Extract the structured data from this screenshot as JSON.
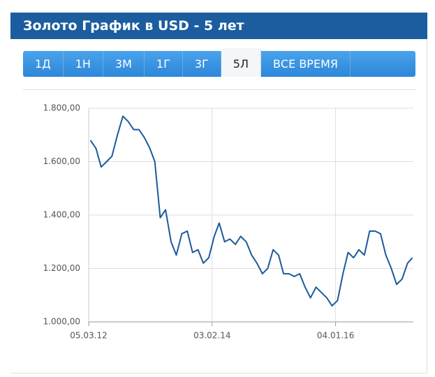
{
  "header": {
    "title": "Золото График в USD - 5 лет"
  },
  "tabs": {
    "items": [
      "1Д",
      "1Н",
      "3М",
      "1Г",
      "3Г",
      "5Л",
      "ВСЕ ВРЕМЯ"
    ],
    "active": 5
  },
  "chart_data": {
    "type": "line",
    "color": "#1c5a9c",
    "grid": true,
    "x": [
      "15.03.12",
      "15.04.12",
      "15.05.12",
      "15.06.12",
      "15.07.12",
      "15.08.12",
      "15.09.12",
      "15.10.12",
      "15.11.12",
      "15.12.12",
      "15.01.13",
      "15.02.13",
      "15.03.13",
      "15.04.13",
      "15.05.13",
      "15.06.13",
      "15.07.13",
      "15.08.13",
      "15.09.13",
      "15.10.13",
      "15.11.13",
      "15.12.13",
      "15.01.14",
      "15.02.14",
      "15.03.14",
      "15.04.14",
      "15.05.14",
      "15.06.14",
      "15.07.14",
      "15.08.14",
      "15.09.14",
      "15.10.14",
      "15.11.14",
      "15.12.14",
      "15.01.15",
      "15.02.15",
      "15.03.15",
      "15.04.15",
      "15.05.15",
      "15.06.15",
      "15.07.15",
      "15.08.15",
      "15.09.15",
      "15.10.15",
      "15.11.15",
      "15.12.15",
      "15.01.16",
      "15.02.16",
      "15.03.16",
      "15.04.16",
      "15.05.16",
      "15.06.16",
      "15.07.16",
      "15.08.16",
      "15.09.16",
      "15.10.16",
      "15.11.16",
      "15.12.16",
      "15.01.17",
      "15.02.17",
      "15.03.17"
    ],
    "values": [
      1680,
      1650,
      1580,
      1600,
      1620,
      1700,
      1770,
      1750,
      1720,
      1720,
      1690,
      1650,
      1600,
      1390,
      1420,
      1300,
      1250,
      1330,
      1340,
      1260,
      1270,
      1220,
      1240,
      1320,
      1370,
      1300,
      1310,
      1290,
      1320,
      1300,
      1250,
      1220,
      1180,
      1200,
      1270,
      1250,
      1180,
      1180,
      1170,
      1180,
      1130,
      1090,
      1130,
      1110,
      1090,
      1060,
      1080,
      1180,
      1260,
      1240,
      1270,
      1250,
      1340,
      1340,
      1330,
      1250,
      1200,
      1140,
      1160,
      1220,
      1240
    ],
    "xlim": [
      "05.03.12",
      "20.03.17"
    ],
    "xticks": [
      "05.03.12",
      "03.02.14",
      "04.01.16"
    ],
    "ylim": [
      1000,
      1800
    ],
    "yticks": [
      {
        "value": 1000,
        "label": "1.000,00"
      },
      {
        "value": 1200,
        "label": "1.200,00"
      },
      {
        "value": 1400,
        "label": "1.400,00"
      },
      {
        "value": 1600,
        "label": "1.600,00"
      },
      {
        "value": 1800,
        "label": "1.800,00"
      }
    ]
  }
}
